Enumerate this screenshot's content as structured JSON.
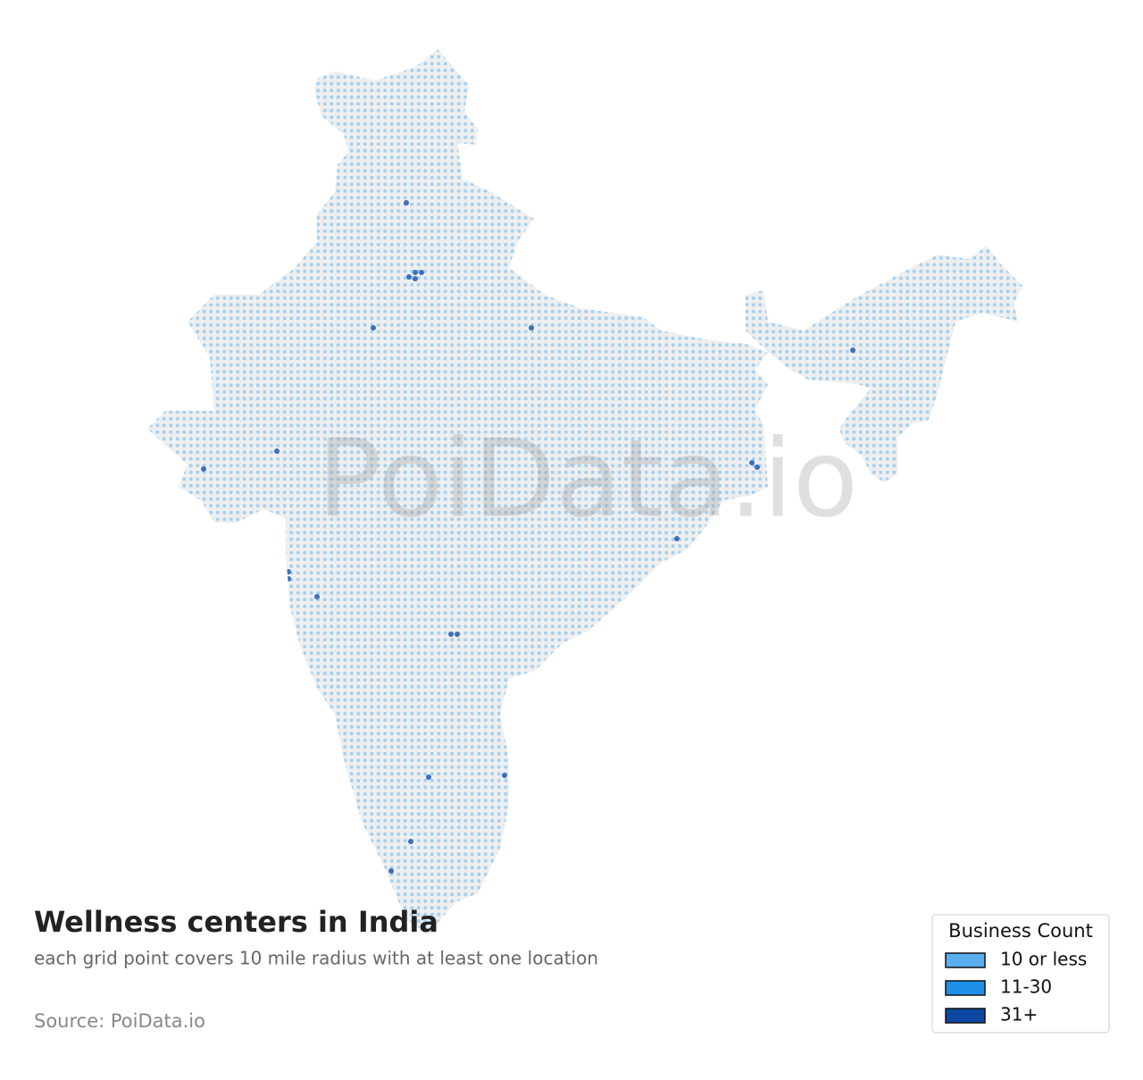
{
  "title": "Wellness centers in India",
  "subtitle": "each grid point covers 10 mile radius with at least one location",
  "source": "Source: PoiData.io",
  "watermark": "PoiData.io",
  "legend": {
    "title": "Business Count",
    "items": [
      {
        "label": "10 or less",
        "color": "#5aaff0"
      },
      {
        "label": "11-30",
        "color": "#1e90eb"
      },
      {
        "label": "31+",
        "color": "#0d47a1"
      }
    ]
  }
}
